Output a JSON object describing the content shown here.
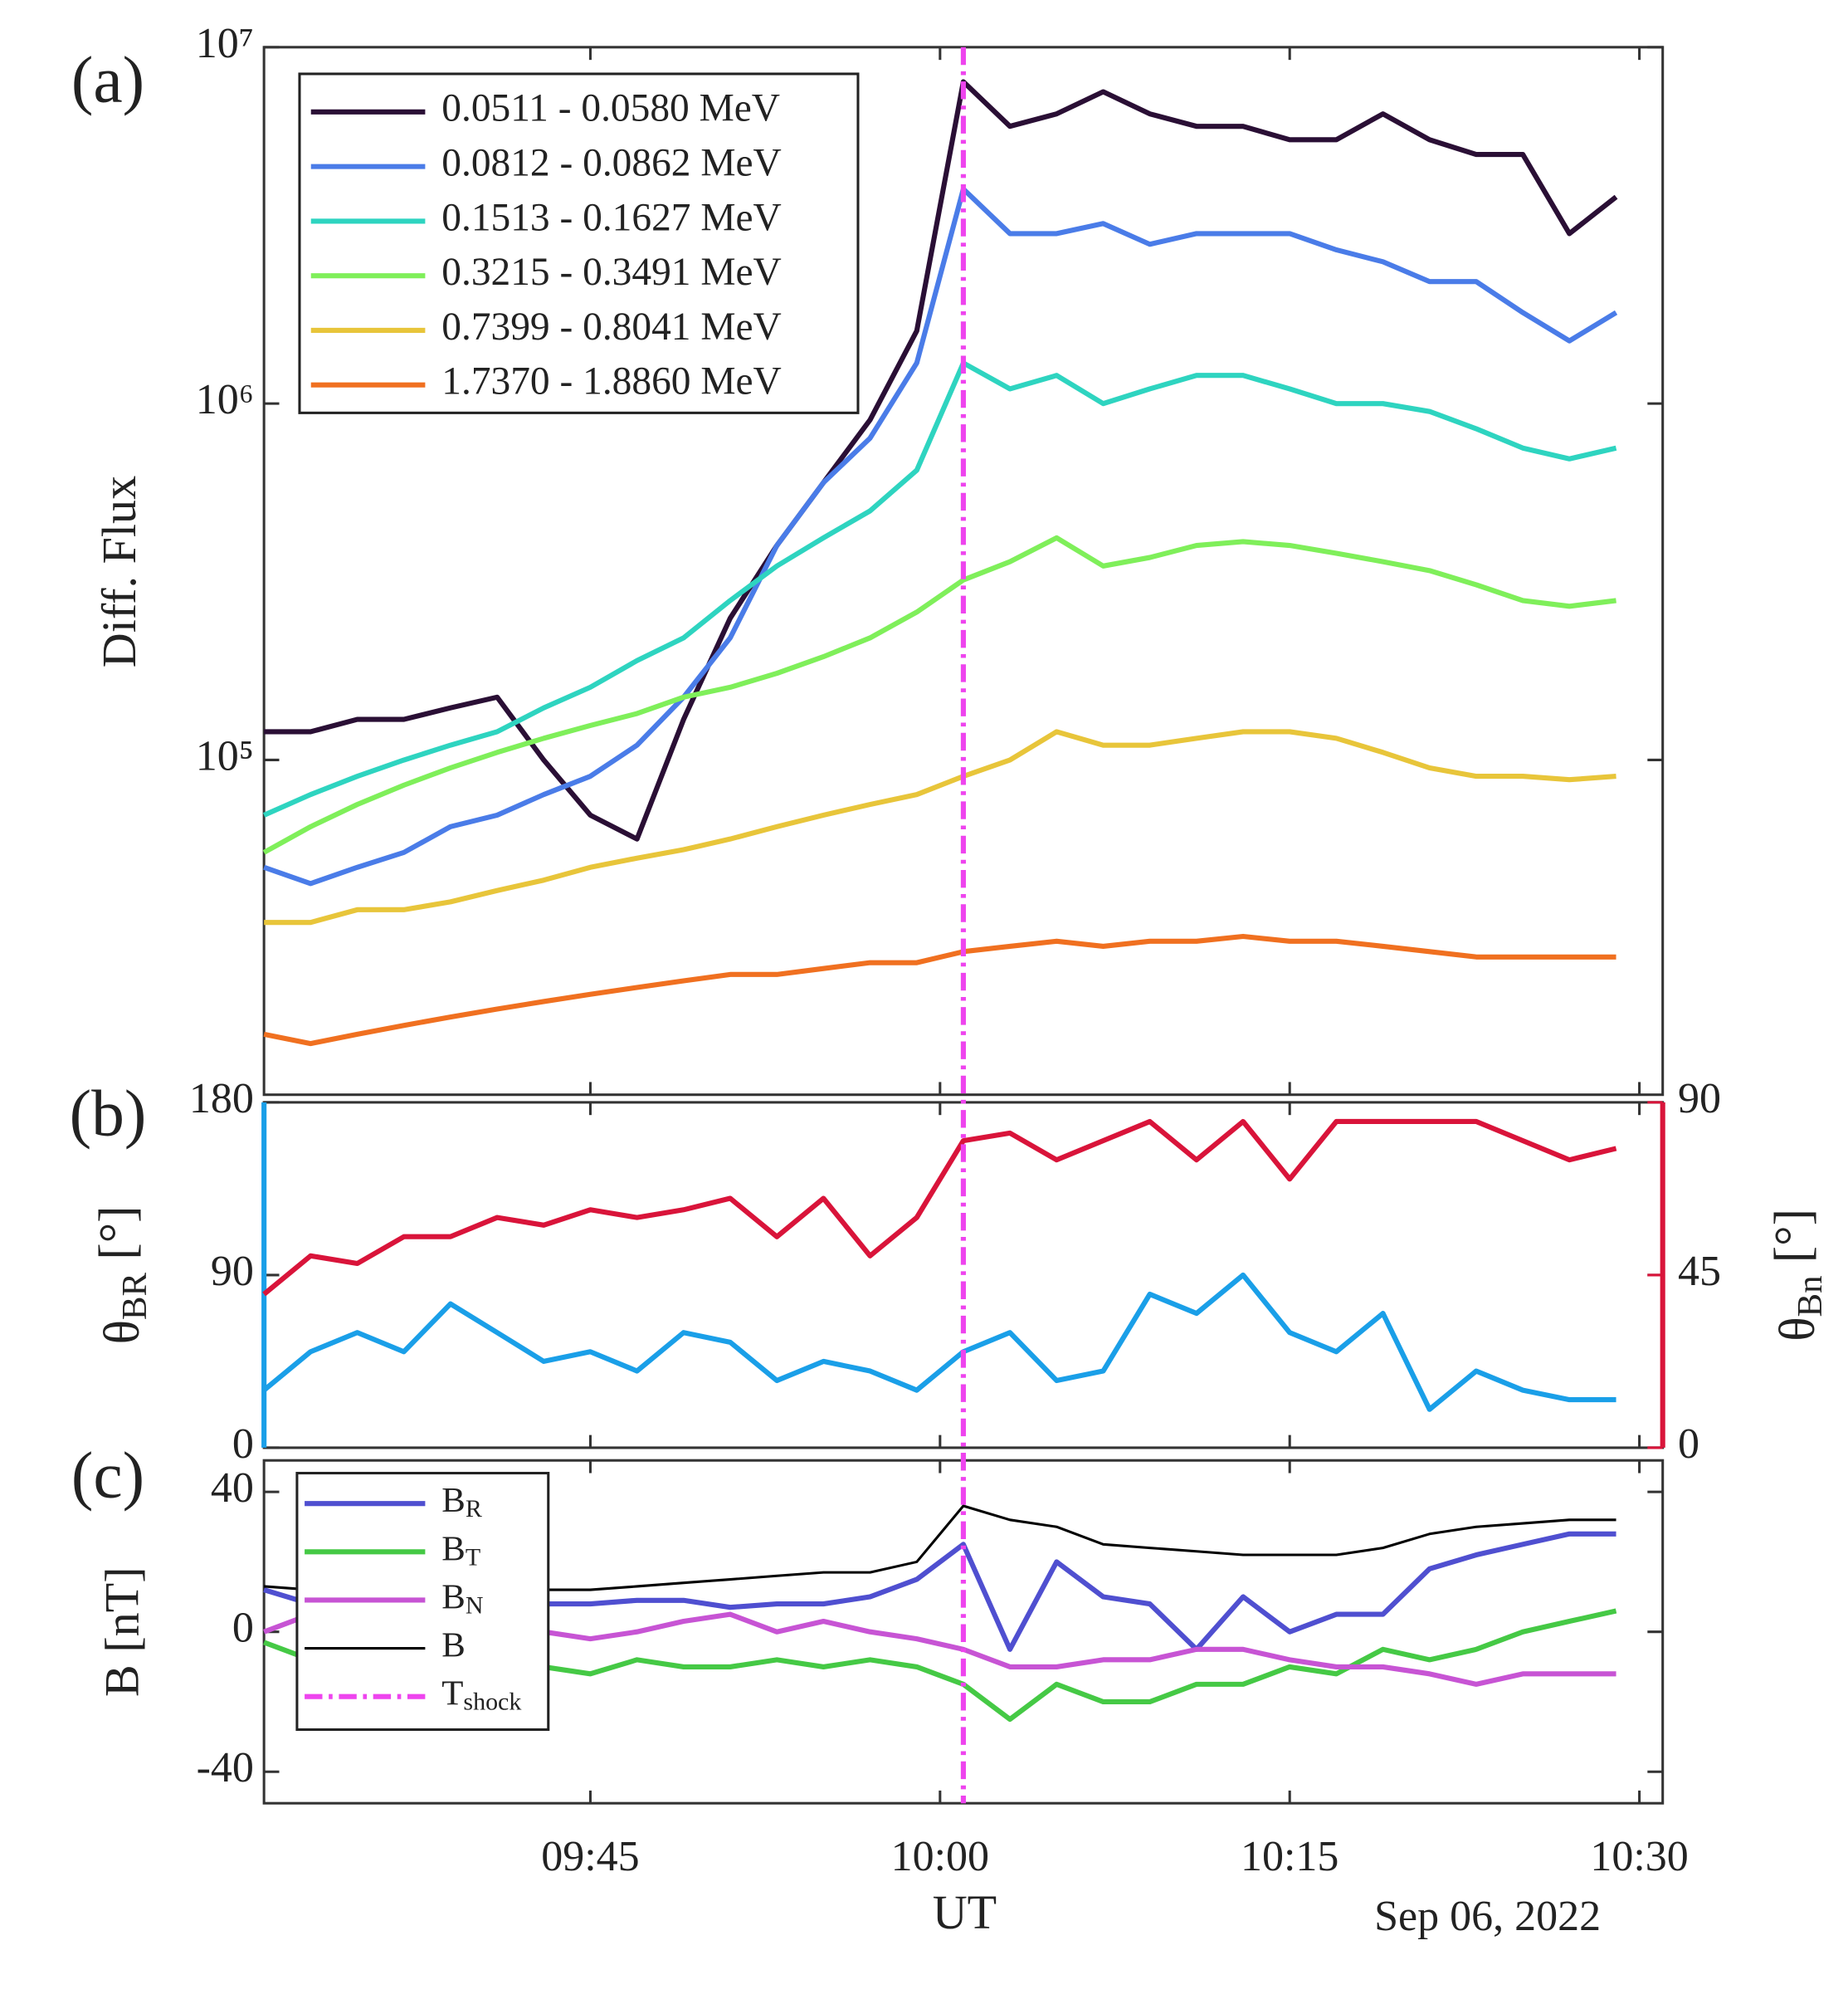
{
  "chart_data": [
    {
      "type": "line",
      "panel_label": "(a)",
      "ylabel": "Diff. Flux",
      "log": true,
      "x": [
        "09:31",
        "09:33",
        "09:35",
        "09:37",
        "09:39",
        "09:41",
        "09:43",
        "09:45",
        "09:47",
        "09:49",
        "09:51",
        "09:53",
        "09:55",
        "09:57",
        "09:59",
        "10:01",
        "10:03",
        "10:05",
        "10:07",
        "10:09",
        "10:11",
        "10:13",
        "10:15",
        "10:17",
        "10:19",
        "10:21",
        "10:23",
        "10:25",
        "10:27",
        "10:29"
      ],
      "xlim": [
        "09:31",
        "10:31"
      ],
      "ylim": [
        11500,
        10000000
      ],
      "yticks": [
        {
          "value": 100000,
          "label": "10⁵"
        },
        {
          "value": 1000000,
          "label": "10⁶"
        },
        {
          "value": 10000000,
          "label": "10⁷"
        }
      ],
      "series": [
        {
          "name": "0.0511 - 0.0580 MeV",
          "color": "#2a0f35",
          "values": [
            120000,
            120000,
            130000,
            130000,
            140000,
            150000,
            100000,
            70000,
            60000,
            130000,
            250000,
            400000,
            600000,
            900000,
            1600000,
            8000000,
            6000000,
            6500000,
            7500000,
            6500000,
            6000000,
            6000000,
            5500000,
            5500000,
            6500000,
            5500000,
            5000000,
            5000000,
            3000000,
            3800000
          ]
        },
        {
          "name": "0.0812 - 0.0862 MeV",
          "color": "#4a7ce8",
          "values": [
            50000,
            45000,
            50000,
            55000,
            65000,
            70000,
            80000,
            90000,
            110000,
            150000,
            220000,
            400000,
            600000,
            800000,
            1300000,
            4000000,
            3000000,
            3000000,
            3200000,
            2800000,
            3000000,
            3000000,
            3000000,
            2700000,
            2500000,
            2200000,
            2200000,
            1800000,
            1500000,
            1800000
          ]
        },
        {
          "name": "0.1513 - 0.1627 MeV",
          "color": "#2ed4c0",
          "values": [
            70000,
            80000,
            90000,
            100000,
            110000,
            120000,
            140000,
            160000,
            190000,
            220000,
            280000,
            350000,
            420000,
            500000,
            650000,
            1300000,
            1100000,
            1200000,
            1000000,
            1100000,
            1200000,
            1200000,
            1100000,
            1000000,
            1000000,
            950000,
            850000,
            750000,
            700000,
            750000
          ]
        },
        {
          "name": "0.3215 - 0.3491 MeV",
          "color": "#7fef5a",
          "values": [
            55000,
            65000,
            75000,
            85000,
            95000,
            105000,
            115000,
            125000,
            135000,
            150000,
            160000,
            175000,
            195000,
            220000,
            260000,
            320000,
            360000,
            420000,
            350000,
            370000,
            400000,
            410000,
            400000,
            380000,
            360000,
            340000,
            310000,
            280000,
            270000,
            280000
          ]
        },
        {
          "name": "0.7399 - 0.8041 MeV",
          "color": "#e8c53a",
          "values": [
            35000,
            35000,
            38000,
            38000,
            40000,
            43000,
            46000,
            50000,
            53000,
            56000,
            60000,
            65000,
            70000,
            75000,
            80000,
            90000,
            100000,
            120000,
            110000,
            110000,
            115000,
            120000,
            120000,
            115000,
            105000,
            95000,
            90000,
            90000,
            88000,
            90000
          ]
        },
        {
          "name": "1.7370 - 1.8860 MeV",
          "color": "#f07020",
          "values": [
            17000,
            16000,
            17000,
            18000,
            19000,
            20000,
            21000,
            22000,
            23000,
            24000,
            25000,
            25000,
            26000,
            27000,
            27000,
            29000,
            30000,
            31000,
            30000,
            31000,
            31000,
            32000,
            31000,
            31000,
            30000,
            29000,
            28000,
            28000,
            28000,
            28000
          ]
        }
      ]
    },
    {
      "type": "line",
      "panel_label": "(b)",
      "ylabel": {
        "symbol": "θ",
        "subscript": "BR",
        "unit": " [°]"
      },
      "y2label": {
        "symbol": "θ",
        "subscript": "Bn",
        "unit": " [°]"
      },
      "x": [
        "09:31",
        "09:33",
        "09:35",
        "09:37",
        "09:39",
        "09:41",
        "09:43",
        "09:45",
        "09:47",
        "09:49",
        "09:51",
        "09:53",
        "09:55",
        "09:57",
        "09:59",
        "10:01",
        "10:03",
        "10:05",
        "10:07",
        "10:09",
        "10:11",
        "10:13",
        "10:15",
        "10:17",
        "10:19",
        "10:21",
        "10:23",
        "10:25",
        "10:27",
        "10:29"
      ],
      "xlim": [
        "09:31",
        "10:31"
      ],
      "ylim": [
        0,
        180
      ],
      "yticks": [
        0,
        90,
        180
      ],
      "ycolor": "#1a9fe8",
      "y2lim": [
        0,
        90
      ],
      "y2ticks": [
        0,
        45,
        90
      ],
      "y2color": "#d9143a",
      "series": [
        {
          "color": "#d9143a",
          "axis": "y2",
          "values": [
            40,
            50,
            48,
            55,
            55,
            60,
            58,
            62,
            60,
            62,
            65,
            55,
            65,
            50,
            60,
            80,
            82,
            75,
            80,
            85,
            75,
            85,
            70,
            85,
            85,
            85,
            85,
            80,
            75,
            78
          ]
        },
        {
          "color": "#1a9fe8",
          "values": [
            30,
            50,
            60,
            50,
            75,
            60,
            45,
            50,
            40,
            60,
            55,
            35,
            45,
            40,
            30,
            50,
            60,
            35,
            40,
            80,
            70,
            90,
            60,
            50,
            70,
            20,
            40,
            30,
            25,
            25
          ]
        }
      ]
    },
    {
      "type": "line",
      "panel_label": "(c)",
      "ylabel": "B [nT]",
      "xlabel": "UT",
      "annotation": "Sep 06, 2022",
      "x": [
        "09:31",
        "09:33",
        "09:35",
        "09:37",
        "09:39",
        "09:41",
        "09:43",
        "09:45",
        "09:47",
        "09:49",
        "09:51",
        "09:53",
        "09:55",
        "09:57",
        "09:59",
        "10:01",
        "10:03",
        "10:05",
        "10:07",
        "10:09",
        "10:11",
        "10:13",
        "10:15",
        "10:17",
        "10:19",
        "10:21",
        "10:23",
        "10:25",
        "10:27",
        "10:29"
      ],
      "xlim": [
        "09:31",
        "10:31"
      ],
      "xticks": [
        "09:45",
        "10:00",
        "10:15",
        "10:30"
      ],
      "ylim": [
        -49,
        49
      ],
      "yticks": [
        -40,
        0,
        40
      ],
      "series": [
        {
          "name": "B",
          "subscript": "R",
          "color": "#4f4fd0",
          "values": [
            12,
            8,
            10,
            8,
            8,
            8,
            8,
            8,
            9,
            9,
            7,
            8,
            8,
            10,
            15,
            25,
            -5,
            20,
            10,
            8,
            -5,
            10,
            0,
            5,
            5,
            18,
            22,
            25,
            28,
            28
          ]
        },
        {
          "name": "B",
          "subscript": "T",
          "color": "#45c945",
          "values": [
            -3,
            -8,
            -10,
            -10,
            -8,
            -8,
            -10,
            -12,
            -8,
            -10,
            -10,
            -8,
            -10,
            -8,
            -10,
            -15,
            -25,
            -15,
            -20,
            -20,
            -15,
            -15,
            -10,
            -12,
            -5,
            -8,
            -5,
            0,
            3,
            6
          ]
        },
        {
          "name": "B",
          "subscript": "N",
          "color": "#c754d4",
          "values": [
            0,
            5,
            8,
            5,
            5,
            3,
            0,
            -2,
            0,
            3,
            5,
            0,
            3,
            0,
            -2,
            -5,
            -10,
            -10,
            -8,
            -8,
            -5,
            -5,
            -8,
            -10,
            -10,
            -12,
            -15,
            -12,
            -12,
            -12
          ]
        },
        {
          "name": "B",
          "color": "#000000",
          "values": [
            13,
            12,
            12,
            12,
            12,
            12,
            12,
            12,
            13,
            14,
            15,
            16,
            17,
            17,
            20,
            36,
            32,
            30,
            25,
            24,
            23,
            22,
            22,
            22,
            24,
            28,
            30,
            31,
            32,
            32
          ]
        }
      ],
      "shock": {
        "name": "T",
        "subscript": "shock",
        "x": "10:01",
        "color": "#ee44ee"
      }
    }
  ]
}
